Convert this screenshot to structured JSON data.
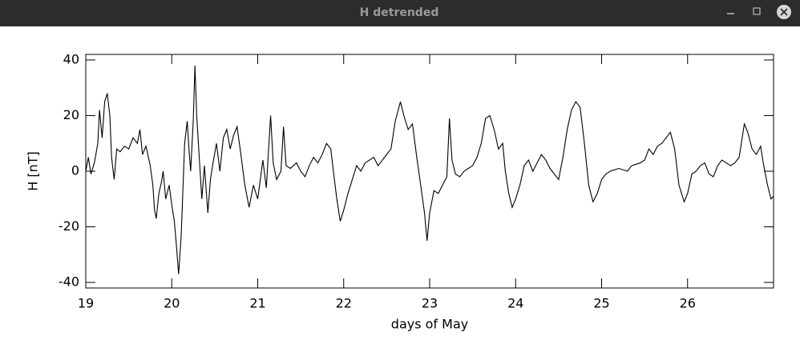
{
  "window": {
    "title": "H detrended"
  },
  "chart_data": {
    "type": "line",
    "xlabel": "days of May",
    "ylabel": "H [nT]",
    "color": "#000000",
    "xlim": [
      19,
      27
    ],
    "ylim": [
      -42,
      42
    ],
    "xticks": [
      19,
      20,
      21,
      22,
      23,
      24,
      25,
      26
    ],
    "yticks": [
      -40,
      -20,
      0,
      20,
      40
    ],
    "x": [
      19.0,
      19.03,
      19.06,
      19.1,
      19.14,
      19.16,
      19.19,
      19.22,
      19.25,
      19.28,
      19.3,
      19.33,
      19.36,
      19.4,
      19.45,
      19.5,
      19.55,
      19.6,
      19.63,
      19.66,
      19.7,
      19.75,
      19.78,
      19.8,
      19.82,
      19.85,
      19.88,
      19.9,
      19.93,
      19.97,
      20.0,
      20.03,
      20.05,
      20.08,
      20.11,
      20.15,
      20.18,
      20.2,
      20.22,
      20.25,
      20.27,
      20.29,
      20.32,
      20.35,
      20.38,
      20.42,
      20.45,
      20.48,
      20.52,
      20.56,
      20.6,
      20.64,
      20.68,
      20.72,
      20.76,
      20.8,
      20.85,
      20.9,
      20.95,
      21.0,
      21.03,
      21.06,
      21.1,
      21.15,
      21.18,
      21.22,
      21.27,
      21.3,
      21.33,
      21.38,
      21.45,
      21.5,
      21.55,
      21.6,
      21.65,
      21.7,
      21.75,
      21.8,
      21.85,
      21.88,
      21.92,
      21.96,
      22.0,
      22.05,
      22.1,
      22.15,
      22.2,
      22.25,
      22.3,
      22.35,
      22.4,
      22.45,
      22.5,
      22.55,
      22.6,
      22.66,
      22.7,
      22.75,
      22.8,
      22.85,
      22.9,
      22.94,
      22.97,
      23.0,
      23.05,
      23.1,
      23.15,
      23.2,
      23.23,
      23.26,
      23.3,
      23.35,
      23.4,
      23.45,
      23.5,
      23.55,
      23.6,
      23.65,
      23.7,
      23.75,
      23.8,
      23.85,
      23.88,
      23.92,
      23.96,
      24.0,
      24.05,
      24.1,
      24.15,
      24.2,
      24.25,
      24.3,
      24.35,
      24.4,
      24.45,
      24.5,
      24.55,
      24.6,
      24.65,
      24.7,
      24.75,
      24.8,
      24.85,
      24.9,
      24.95,
      25.0,
      25.05,
      25.1,
      25.2,
      25.3,
      25.35,
      25.45,
      25.5,
      25.55,
      25.6,
      25.65,
      25.7,
      25.75,
      25.8,
      25.85,
      25.9,
      25.96,
      26.0,
      26.05,
      26.1,
      26.15,
      26.2,
      26.25,
      26.3,
      26.35,
      26.4,
      26.45,
      26.5,
      26.55,
      26.6,
      26.66,
      26.7,
      26.75,
      26.8,
      26.85,
      26.88,
      26.93,
      26.97,
      27.0
    ],
    "values": [
      0,
      5,
      -1,
      3,
      10,
      22,
      12,
      25,
      28,
      20,
      5,
      -3,
      8,
      7,
      9,
      8,
      12,
      10,
      15,
      6,
      9,
      2,
      -5,
      -14,
      -17,
      -8,
      -4,
      0,
      -10,
      -5,
      -12,
      -18,
      -25,
      -37,
      -23,
      10,
      18,
      8,
      0,
      18,
      38,
      20,
      5,
      -10,
      2,
      -15,
      -3,
      3,
      10,
      0,
      12,
      15,
      8,
      13,
      16,
      7,
      -5,
      -13,
      -5,
      -10,
      -3,
      4,
      -6,
      20,
      3,
      -3,
      0,
      16,
      2,
      1,
      3,
      0,
      -2,
      2,
      5,
      3,
      6,
      10,
      8,
      0,
      -10,
      -18,
      -14,
      -8,
      -3,
      2,
      0,
      3,
      4,
      5,
      2,
      4,
      6,
      8,
      18,
      25,
      20,
      15,
      17,
      5,
      -6,
      -15,
      -25,
      -15,
      -7,
      -8,
      -5,
      -2,
      19,
      4,
      -1,
      -2,
      0,
      1,
      2,
      5,
      10,
      19,
      20,
      15,
      8,
      10,
      0,
      -8,
      -13,
      -10,
      -5,
      2,
      4,
      0,
      3,
      6,
      4,
      1,
      -1,
      -3,
      5,
      15,
      22,
      25,
      23,
      10,
      -5,
      -11,
      -8,
      -3,
      -1,
      0,
      1,
      0,
      2,
      3,
      4,
      8,
      6,
      9,
      10,
      12,
      14,
      8,
      -5,
      -11,
      -8,
      -1,
      0,
      2,
      3,
      -1,
      -2,
      2,
      4,
      3,
      2,
      3,
      5,
      17,
      14,
      8,
      6,
      9,
      3,
      -5,
      -10,
      -9
    ]
  }
}
